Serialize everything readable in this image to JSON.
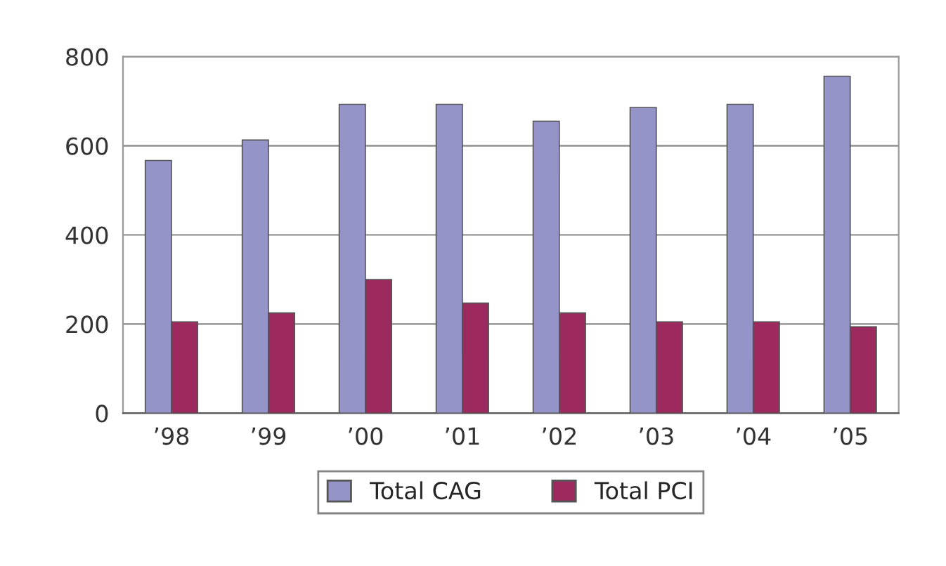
{
  "chart_data": {
    "type": "bar",
    "categories": [
      "’98",
      "’99",
      "’00",
      "’01",
      "’02",
      "’03",
      "’04",
      "’05"
    ],
    "series": [
      {
        "name": "Total CAG",
        "color": "#9494c8",
        "values": [
          567,
          613,
          693,
          693,
          655,
          686,
          693,
          756
        ]
      },
      {
        "name": "Total PCI",
        "color": "#9c2a5e",
        "values": [
          205,
          225,
          300,
          247,
          225,
          205,
          205,
          194
        ]
      }
    ],
    "ylim": [
      0,
      800
    ],
    "yticks": [
      0,
      200,
      400,
      600,
      800
    ],
    "grid": "y",
    "legend": "bottom"
  }
}
